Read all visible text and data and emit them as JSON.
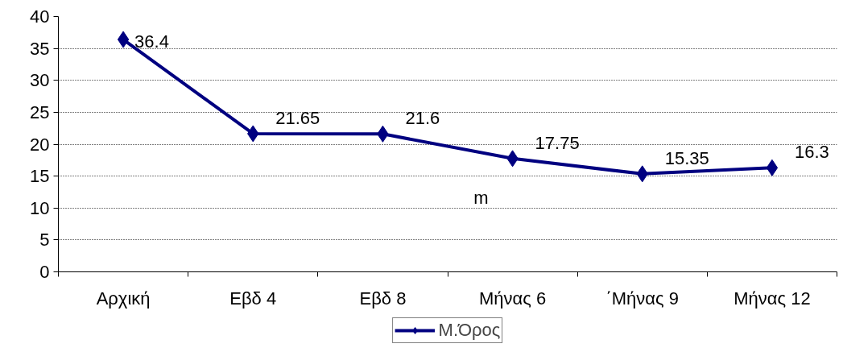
{
  "chart_data": {
    "type": "line",
    "categories": [
      "Αρχική",
      "Εβδ 4",
      "Εβδ 8",
      "Μήνας 6",
      "΄Μήνας 9",
      "Μήνας 12"
    ],
    "series": [
      {
        "name": "Μ.Όρος",
        "color": "#000080",
        "values": [
          36.4,
          21.65,
          21.6,
          17.75,
          15.35,
          16.3
        ]
      }
    ],
    "ylim": [
      0,
      40
    ],
    "yticks": [
      0,
      5,
      10,
      15,
      20,
      25,
      30,
      35,
      40
    ],
    "grid": "y",
    "legend": "bottom",
    "marker": "diamond",
    "line_style": "solid",
    "data_labels": true,
    "annotations": [
      "m"
    ]
  }
}
